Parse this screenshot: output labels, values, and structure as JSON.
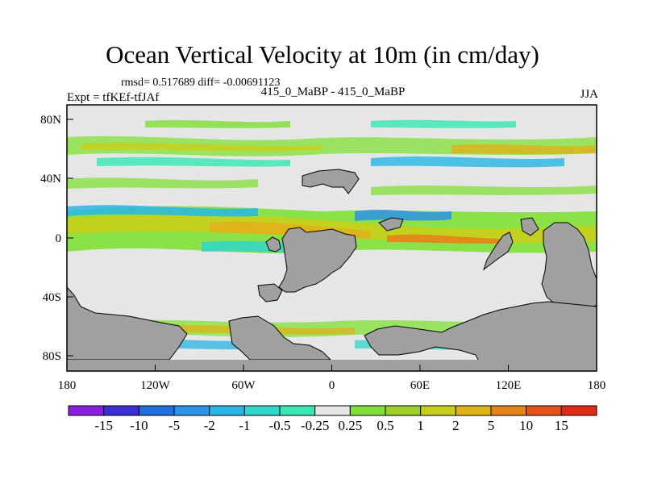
{
  "title": "Ocean Vertical Velocity at 10m (in cm/day)",
  "stats_line": "rmsd= 0.517689 diff= -0.00691123",
  "case_line": "415_0_MaBP - 415_0_MaBP",
  "experiment_line": "Expt = tfKEf-tfJAf",
  "season": "JJA",
  "axes": {
    "x_ticks": [
      "180",
      "120W",
      "60W",
      "0",
      "60E",
      "120E",
      "180"
    ],
    "y_ticks": [
      "80N",
      "40N",
      "0",
      "40S",
      "80S"
    ]
  },
  "colorbar": {
    "labels": [
      "-15",
      "-10",
      "-5",
      "-2",
      "-1",
      "-0.5",
      "-0.25",
      "0.25",
      "0.5",
      "1",
      "2",
      "5",
      "10",
      "15"
    ],
    "colors": [
      "#8c1ee0",
      "#3b2fd8",
      "#1f6fe0",
      "#2b93e8",
      "#27b6e6",
      "#2ed6cc",
      "#36e8b4",
      "#e6e6e6",
      "#7fe036",
      "#9ece28",
      "#c8cf1a",
      "#dfb218",
      "#e6821a",
      "#e8531c",
      "#e02a14"
    ]
  },
  "colors": {
    "land": "#a0a0a0",
    "ocean_background": "#e6e6e6"
  }
}
